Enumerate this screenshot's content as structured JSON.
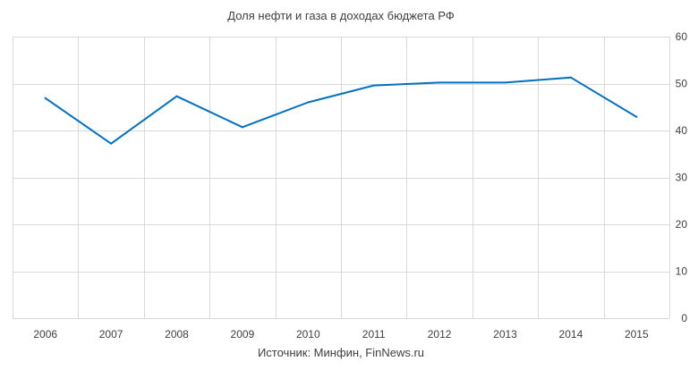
{
  "chart_data": {
    "type": "line",
    "title": "Доля нефти и газа в доходах бюджета РФ",
    "source": "Источник: Минфин, FinNews.ru",
    "categories": [
      "2006",
      "2007",
      "2008",
      "2009",
      "2010",
      "2011",
      "2012",
      "2013",
      "2014",
      "2015"
    ],
    "series": [
      {
        "values": [
          46.9,
          37.2,
          47.3,
          40.7,
          46.0,
          49.6,
          50.2,
          50.2,
          51.3,
          42.9
        ],
        "color": "#0070c0"
      }
    ],
    "ylim": [
      0,
      60
    ],
    "yticks": [
      0,
      10,
      20,
      30,
      40,
      50,
      60
    ],
    "y_axis_position": "right",
    "grid": true,
    "legend": "none",
    "xlabel": "",
    "ylabel": ""
  }
}
